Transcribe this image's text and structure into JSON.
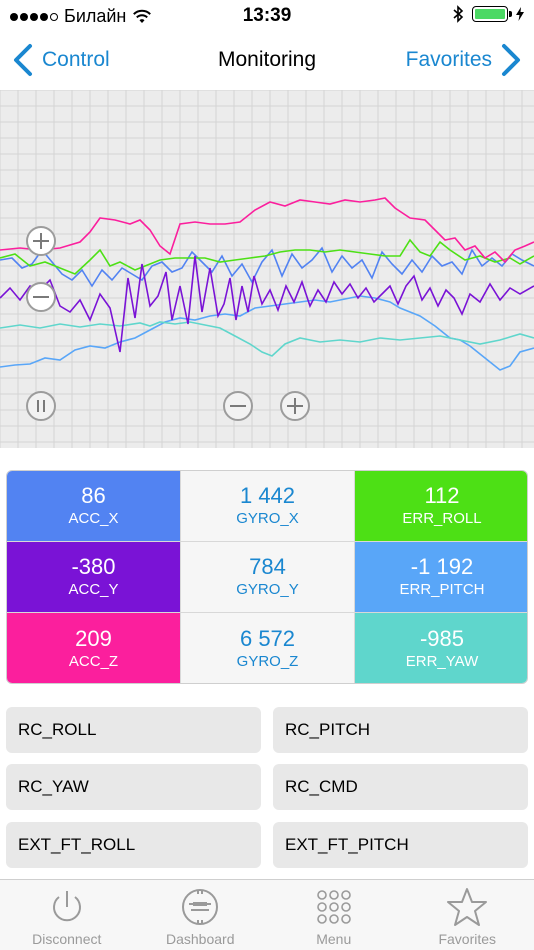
{
  "status_bar": {
    "carrier": "Билайн",
    "time": "13:39"
  },
  "nav": {
    "back_label": "Control",
    "title": "Monitoring",
    "forward_label": "Favorites"
  },
  "colors": {
    "accent": "#1a87d0",
    "acc_x": "#5283f2",
    "acc_y": "#7a13d6",
    "acc_z": "#fb1f9d",
    "err_roll": "#4de015",
    "err_pitch": "#59a6f8",
    "err_yaw": "#5fd6cc"
  },
  "values": [
    {
      "value": "86",
      "label": "ACC_X",
      "color": "#5283f2"
    },
    {
      "value": "1 442",
      "label": "GYRO_X",
      "color": "light"
    },
    {
      "value": "112",
      "label": "ERR_ROLL",
      "color": "#4de015"
    },
    {
      "value": "-380",
      "label": "ACC_Y",
      "color": "#7a13d6"
    },
    {
      "value": "784",
      "label": "GYRO_Y",
      "color": "light"
    },
    {
      "value": "-1 192",
      "label": "ERR_PITCH",
      "color": "#59a6f8"
    },
    {
      "value": "209",
      "label": "ACC_Z",
      "color": "#fb1f9d"
    },
    {
      "value": "6 572",
      "label": "GYRO_Z",
      "color": "light"
    },
    {
      "value": "-985",
      "label": "ERR_YAW",
      "color": "#5fd6cc"
    }
  ],
  "buttons": [
    "RC_ROLL",
    "RC_PITCH",
    "RC_YAW",
    "RC_CMD",
    "EXT_FT_ROLL",
    "EXT_FT_PITCH"
  ],
  "tabs": [
    {
      "label": "Disconnect",
      "icon": "power-icon"
    },
    {
      "label": "Dashboard",
      "icon": "gauge-icon"
    },
    {
      "label": "Menu",
      "icon": "grid-icon"
    },
    {
      "label": "Favorites",
      "icon": "star-icon"
    }
  ],
  "graph_controls": [
    "zoom-in",
    "zoom-out",
    "pause",
    "scale-down",
    "scale-up"
  ]
}
